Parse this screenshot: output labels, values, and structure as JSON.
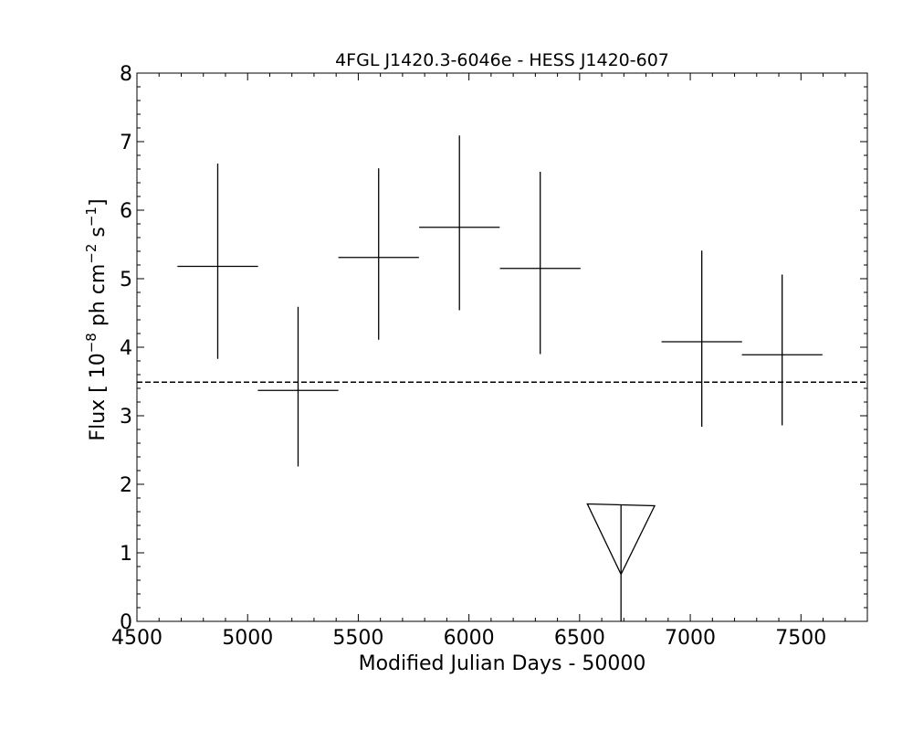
{
  "chart_data": {
    "type": "scatter",
    "title": "4FGL J1420.3-6046e - HESS J1420-607",
    "xlabel": "Modified Julian Days - 50000",
    "ylabel_parts": {
      "prefix": "Flux [ 10",
      "exp1": "−8",
      "mid": " ph cm",
      "exp2": "−2",
      "mid2": " s",
      "exp3": "−1",
      "suffix": "]"
    },
    "xlim": [
      4500,
      7800
    ],
    "ylim": [
      0,
      8
    ],
    "xticks": [
      4500,
      5000,
      5500,
      6000,
      6500,
      7000,
      7500
    ],
    "yticks": [
      0,
      1,
      2,
      3,
      4,
      5,
      6,
      7,
      8
    ],
    "grid": false,
    "points": [
      {
        "x": 4865,
        "xerr": 182,
        "y": 5.18,
        "ylo": 3.83,
        "yhi": 6.68
      },
      {
        "x": 5228,
        "xerr": 182,
        "y": 3.37,
        "ylo": 2.26,
        "yhi": 4.59
      },
      {
        "x": 5592,
        "xerr": 182,
        "y": 5.31,
        "ylo": 4.11,
        "yhi": 6.61
      },
      {
        "x": 5957,
        "xerr": 182,
        "y": 5.75,
        "ylo": 4.54,
        "yhi": 7.09
      },
      {
        "x": 6322,
        "xerr": 182,
        "y": 5.15,
        "ylo": 3.9,
        "yhi": 6.56
      },
      {
        "x": 7052,
        "xerr": 182,
        "y": 4.08,
        "ylo": 2.84,
        "yhi": 5.41
      },
      {
        "x": 7415,
        "xerr": 182,
        "y": 3.89,
        "ylo": 2.86,
        "yhi": 5.06
      }
    ],
    "upper_limits": [
      {
        "x": 6687,
        "y": 1.7,
        "xerr": 152
      }
    ],
    "mean_flux": 3.49
  }
}
